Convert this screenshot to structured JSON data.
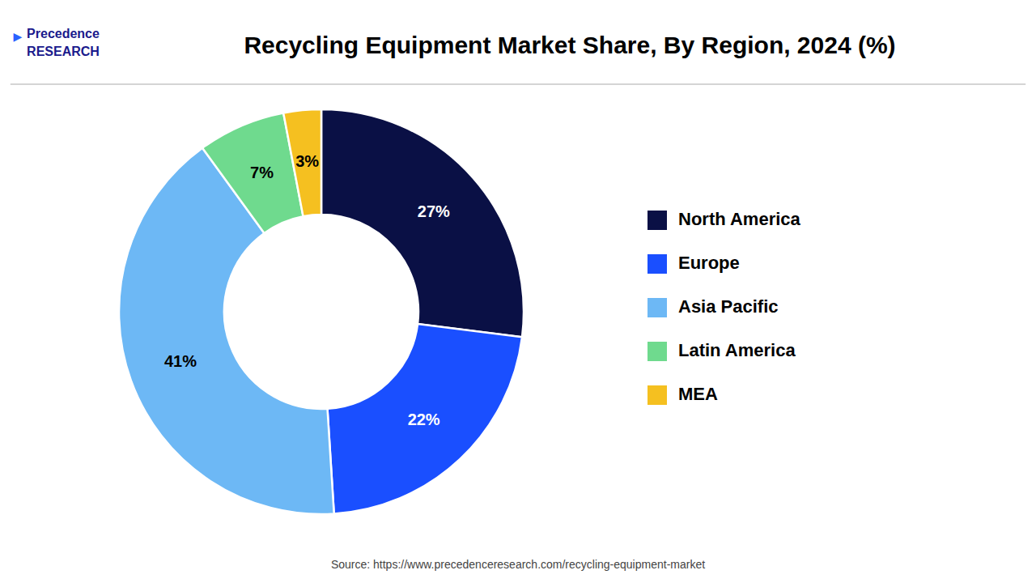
{
  "chart_data": {
    "type": "donut",
    "title": "Recycling Equipment Market Share, By Region, 2024 (%)",
    "categories": [
      "North America",
      "Europe",
      "Asia Pacific",
      "Latin America",
      "MEA"
    ],
    "values": [
      27,
      22,
      41,
      7,
      3
    ],
    "value_labels": [
      "27%",
      "22%",
      "41%",
      "7%",
      "3%"
    ],
    "colors": [
      "#0a1045",
      "#1a4fff",
      "#6db8f5",
      "#6fda8e",
      "#f5c020"
    ],
    "data_labels": true,
    "legend": "right",
    "annotations": [
      "Precedence\nRESEARCH",
      "▶",
      "Source: https://www.precedenceresearch.com/recycling-equipment-market"
    ]
  }
}
